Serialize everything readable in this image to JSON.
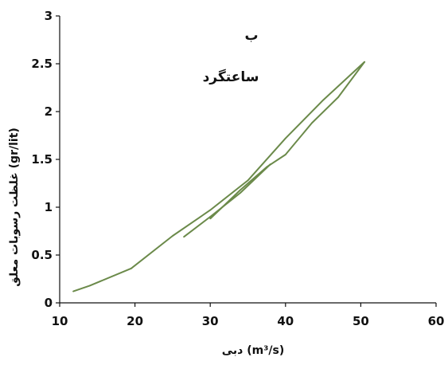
{
  "chart_data": {
    "type": "line",
    "title": "",
    "annotations": [
      "ب",
      "ساعتگرد"
    ],
    "xlabel": "دبی (m³/s)",
    "ylabel": "غلظت رسوبات معلق (gr/lit)",
    "xlim": [
      10,
      60
    ],
    "ylim": [
      0,
      3
    ],
    "x_ticks": [
      "10",
      "20",
      "30",
      "40",
      "50",
      "60"
    ],
    "y_ticks": [
      "0",
      "0.5",
      "1",
      "1.5",
      "2",
      "2.5",
      "3"
    ],
    "grid": false,
    "legend": "none",
    "line_color": "#6b8a4a",
    "series": [
      {
        "points": [
          [
            11.8,
            0.12
          ],
          [
            14,
            0.18
          ],
          [
            19.5,
            0.36
          ],
          [
            25,
            0.7
          ],
          [
            30,
            0.97
          ],
          [
            35,
            1.28
          ],
          [
            40,
            1.72
          ],
          [
            45,
            2.12
          ],
          [
            50.5,
            2.52
          ]
        ]
      },
      {
        "points": [
          [
            50.5,
            2.52
          ],
          [
            47,
            2.15
          ],
          [
            43.5,
            1.88
          ],
          [
            40,
            1.55
          ],
          [
            37.5,
            1.42
          ],
          [
            34,
            1.18
          ],
          [
            30,
            0.88
          ]
        ]
      },
      {
        "points": [
          [
            26.5,
            0.69
          ],
          [
            30,
            0.9
          ],
          [
            34,
            1.15
          ],
          [
            38,
            1.45
          ]
        ]
      }
    ]
  }
}
